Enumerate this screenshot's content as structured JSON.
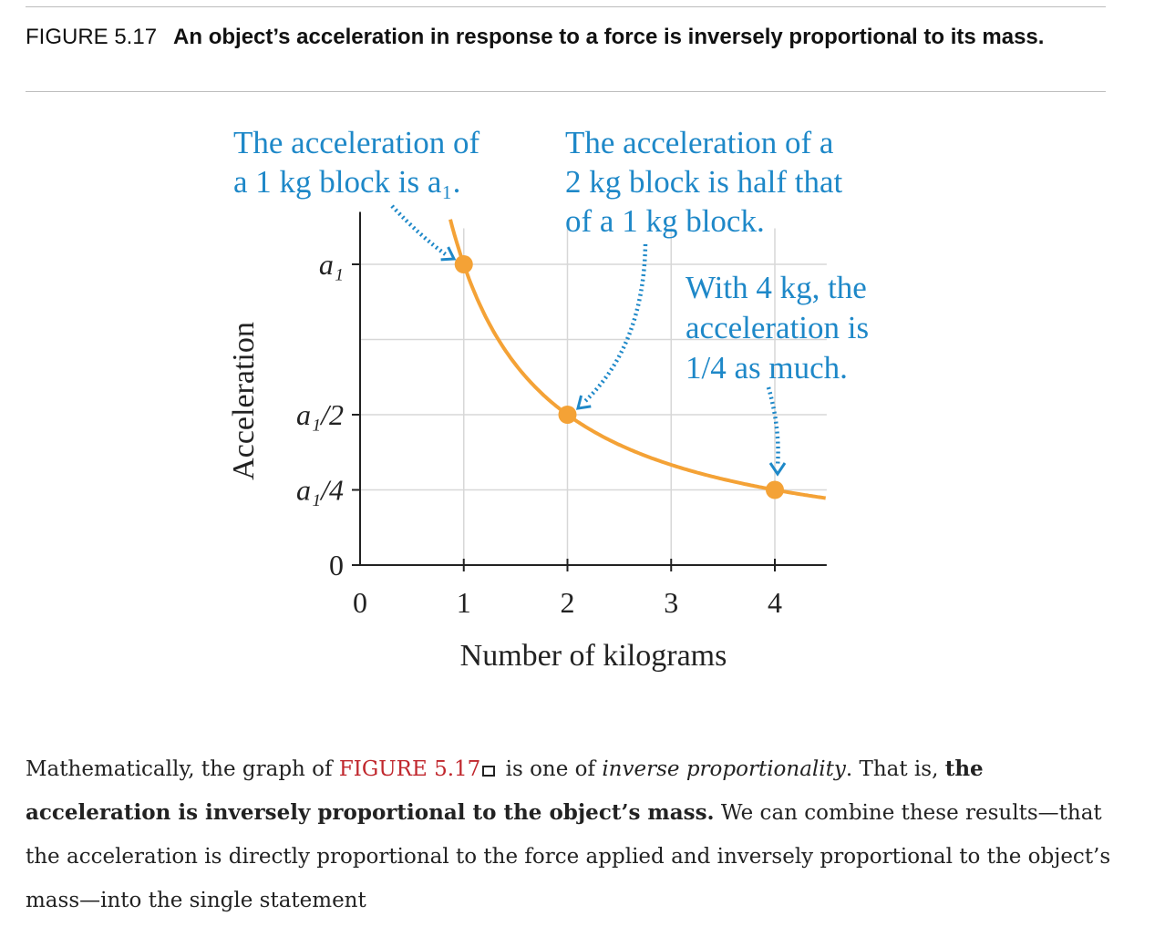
{
  "caption": {
    "figure_number": "FIGURE 5.17",
    "text": "An object’s acceleration in response to a force is inversely proportional to its mass."
  },
  "chart_data": {
    "type": "line",
    "xlabel": "Number of kilograms",
    "ylabel": "Acceleration",
    "x_ticks": [
      "0",
      "1",
      "2",
      "3",
      "4"
    ],
    "y_ticks": [
      "0",
      "a₁/4",
      "a₁/2",
      "a₁"
    ],
    "xlim": [
      0,
      4.5
    ],
    "ylim": [
      0,
      1.15
    ],
    "grid": true,
    "curve": {
      "function": "a1 / m",
      "color": "#f4a236"
    },
    "points": [
      {
        "x": 1,
        "y": 1
      },
      {
        "x": 2,
        "y": 0.5
      },
      {
        "x": 4,
        "y": 0.25
      }
    ],
    "annotations": [
      {
        "lines": [
          "The acceleration of",
          "a 1 kg block is a₁."
        ],
        "points_to": {
          "x": 1,
          "y": 1
        }
      },
      {
        "lines": [
          "The  acceleration of a",
          "2 kg block is half that",
          "of a 1 kg block."
        ],
        "points_to": {
          "x": 2,
          "y": 0.5
        }
      },
      {
        "lines": [
          "With 4 kg, the",
          "acceleration is",
          "1/4 as much."
        ],
        "points_to": {
          "x": 4,
          "y": 0.25
        }
      }
    ],
    "annotation_color": "#1e88c8"
  },
  "paragraph": {
    "p1": "Mathematically, the graph of ",
    "ref": "FIGURE 5.17",
    "p2": " is one of ",
    "em": "inverse proportionality",
    "p3": ". That is, ",
    "strong": "the acceleration is inversely proportional to the object’s mass.",
    "p4": " We can combine these results—that the acceleration is directly proportional to the force applied and inversely proportional to the object’s mass—into the single statement"
  }
}
